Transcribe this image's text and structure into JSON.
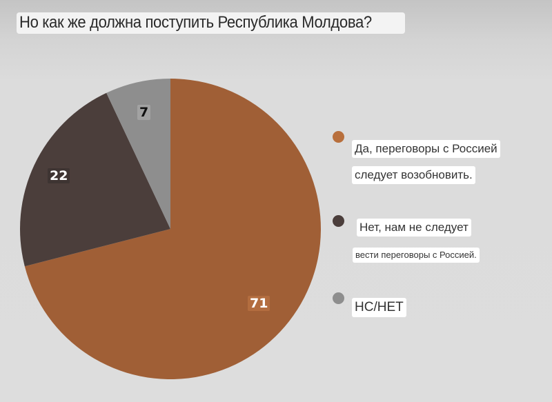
{
  "title": "Но как же должна поступить Республика Молдова?",
  "chart_data": {
    "type": "pie",
    "title": "Но как же должна поступить Республика Молдова?",
    "categories": [
      "Да, переговоры с Россией следует возобновить.",
      "Нет, нам не следует вести переговоры с Россией.",
      "НС/НЕТ"
    ],
    "values": [
      71,
      22,
      7
    ],
    "colors": [
      "#a05f36",
      "#4b3e3b",
      "#8e8e8e"
    ],
    "start_angle": "12 o'clock, clockwise",
    "legend_position": "right"
  },
  "labels": {
    "yes": "71",
    "no": "22",
    "dk": "7"
  },
  "legend": {
    "yes": {
      "line1": "Да, переговоры с Россией",
      "line2": "следует возобновить."
    },
    "no": {
      "line1": "Нет, нам не следует",
      "line2": "вести переговоры с Россией."
    },
    "dk": {
      "line1": "НС/НЕТ"
    }
  }
}
